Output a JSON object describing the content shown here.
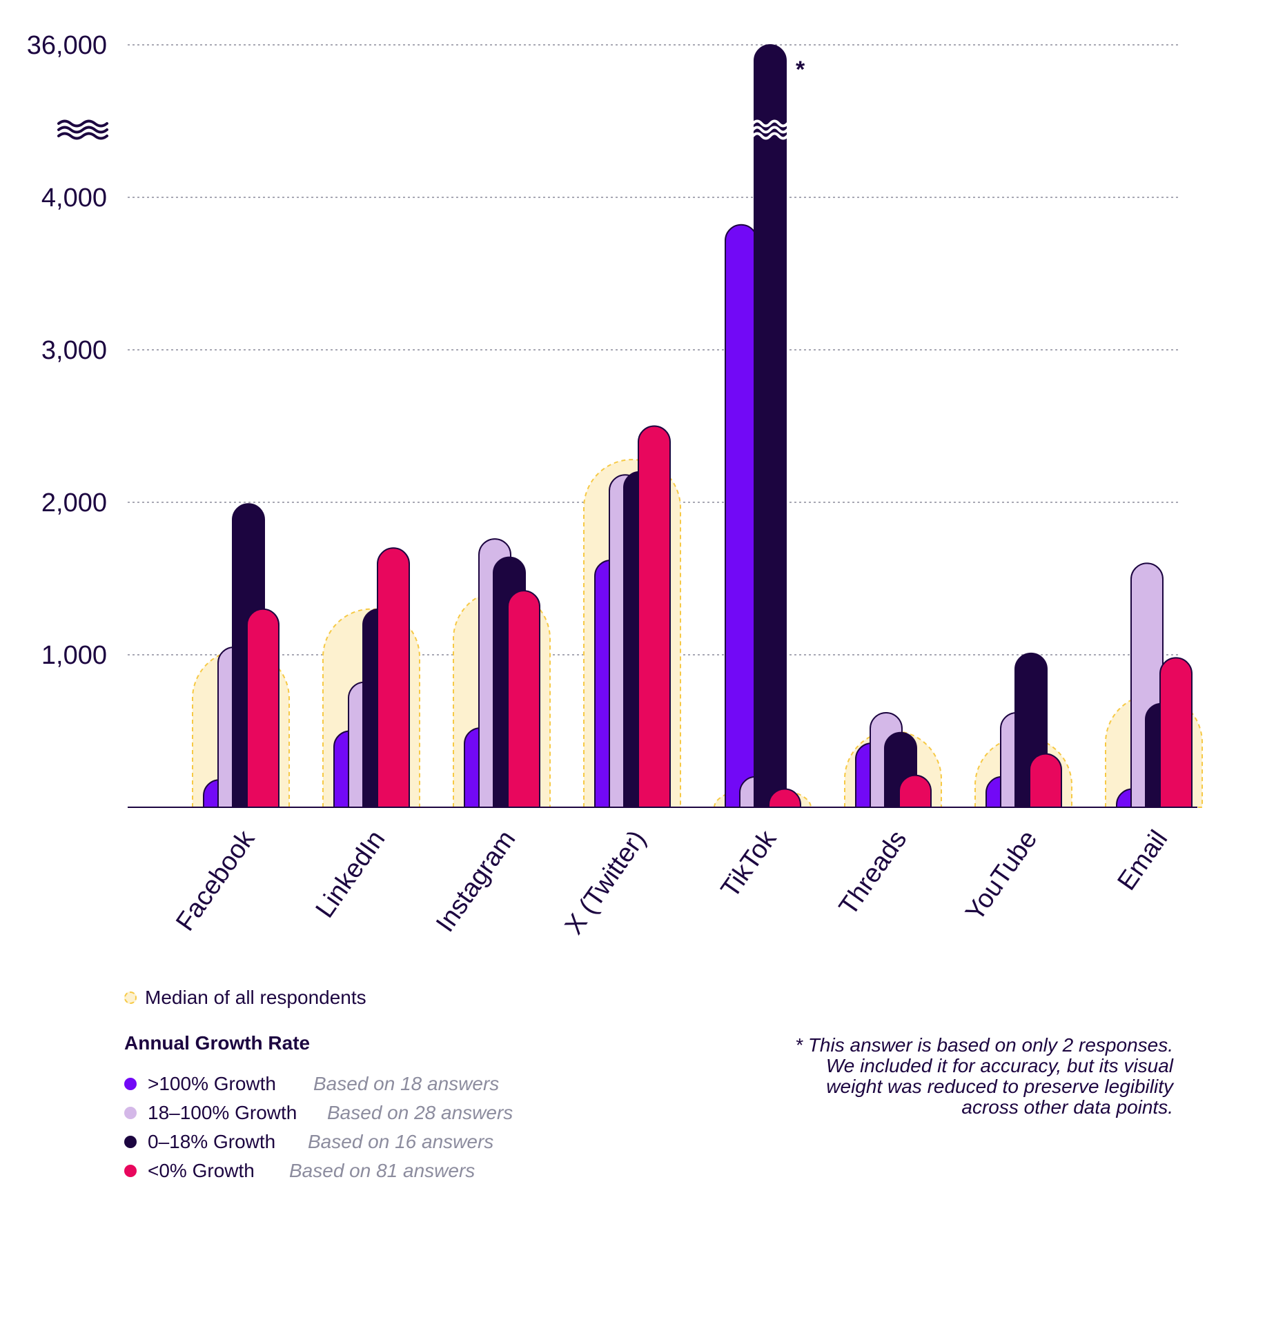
{
  "chart_data": {
    "type": "bar",
    "title": "",
    "xlabel": "",
    "ylabel": "",
    "ylim": [
      0,
      4400
    ],
    "y_ticks": [
      "1,000",
      "2,000",
      "3,000",
      "4,000",
      "36,000"
    ],
    "axis_break": "≋",
    "categories": [
      "Facebook",
      "LinkedIn",
      "Instagram",
      "X (Twitter)",
      "TikTok",
      "Threads",
      "YouTube",
      "Email"
    ],
    "median": [
      1030,
      1300,
      1420,
      2280,
      130,
      500,
      460,
      740
    ],
    "series": [
      {
        "name": ">100% Growth",
        "color": "#7209f6",
        "values": [
          180,
          500,
          520,
          1620,
          3820,
          420,
          200,
          120
        ]
      },
      {
        "name": "18–100% Growth",
        "color": "#d4b8e8",
        "values": [
          1050,
          820,
          1760,
          2180,
          200,
          620,
          620,
          1600
        ]
      },
      {
        "name": "0–18% Growth",
        "color": "#1c0540",
        "values": [
          1990,
          1300,
          1640,
          2200,
          36000,
          490,
          1010,
          680
        ]
      },
      {
        "name": "<0% Growth",
        "color": "#e8075d",
        "values": [
          1300,
          1700,
          1420,
          2500,
          120,
          210,
          350,
          980
        ]
      }
    ],
    "broken_bar_marker": "*"
  },
  "legend": {
    "median_label": "Median of all respondents",
    "title": "Annual Growth Rate",
    "items": [
      {
        "label": ">100% Growth",
        "note": "Based on 18 answers",
        "color": "#7209f6"
      },
      {
        "label": "18–100% Growth",
        "note": "Based on 28 answers",
        "color": "#d4b8e8"
      },
      {
        "label": "0–18% Growth",
        "note": "Based on 16 answers",
        "color": "#1c0540"
      },
      {
        "label": "<0% Growth",
        "note": "Based on 81 answers",
        "color": "#e8075d"
      }
    ]
  },
  "footnote": {
    "lines": [
      "* This answer is based on only 2 responses.",
      "We included it for accuracy, but its visual",
      "weight was reduced to preserve legibility",
      "across other data points."
    ]
  },
  "colors": {
    "median_fill": "#fdf1cf",
    "median_stroke": "#f6c945",
    "grid": "#8a8a9a",
    "ink": "#1c0540"
  }
}
